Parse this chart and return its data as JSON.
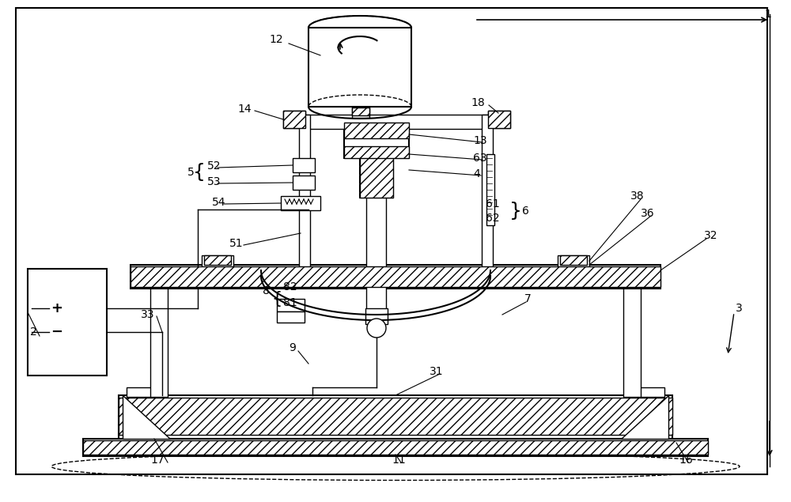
{
  "bg_color": "#ffffff",
  "line_color": "#000000",
  "fig_width": 10.0,
  "fig_height": 6.35
}
